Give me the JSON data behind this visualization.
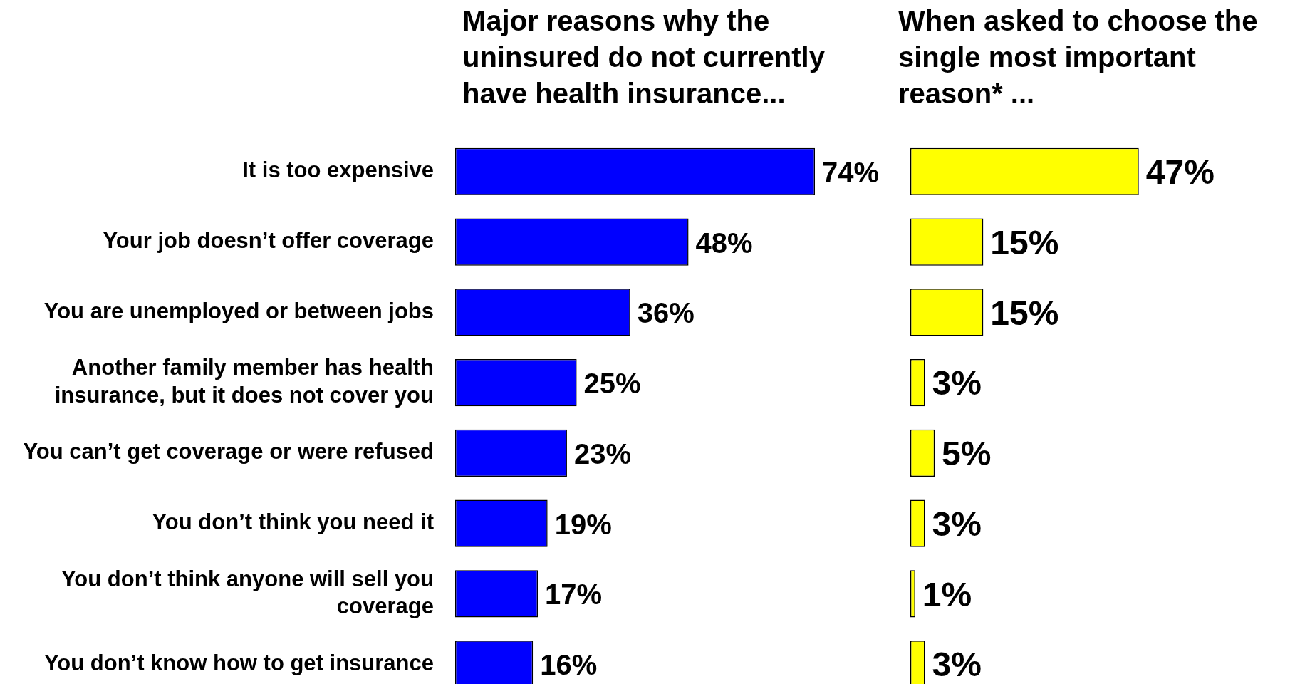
{
  "chart_data": [
    {
      "type": "bar",
      "orientation": "horizontal",
      "title": "Major reasons why the uninsured do not currently have health insurance...",
      "categories": [
        "It is too expensive",
        "Your job doesn’t offer coverage",
        "You are unemployed or between jobs",
        "Another family member has health insurance, but it does not cover you",
        "You can’t get coverage or were refused",
        "You don’t think you need it",
        "You don’t think anyone will sell you coverage",
        "You don’t know how to get insurance"
      ],
      "values": [
        74,
        48,
        36,
        25,
        23,
        19,
        17,
        16
      ],
      "color": "#0000ff",
      "value_labels": [
        "74%",
        "48%",
        "36%",
        "25%",
        "23%",
        "19%",
        "17%",
        "16%"
      ],
      "tick_labels": "y",
      "grid": false,
      "legend": false
    },
    {
      "type": "bar",
      "orientation": "horizontal",
      "title": "When asked to choose the single most important reason* ...",
      "categories": [
        null,
        null,
        null,
        null,
        null,
        null,
        null,
        null
      ],
      "values": [
        47,
        15,
        15,
        3,
        5,
        3,
        1,
        3
      ],
      "color": "#ffff00",
      "value_labels": [
        "47%",
        "15%",
        "15%",
        "3%",
        "5%",
        "3%",
        "1%",
        "3%"
      ],
      "tick_labels": false,
      "grid": false,
      "legend": false
    }
  ]
}
